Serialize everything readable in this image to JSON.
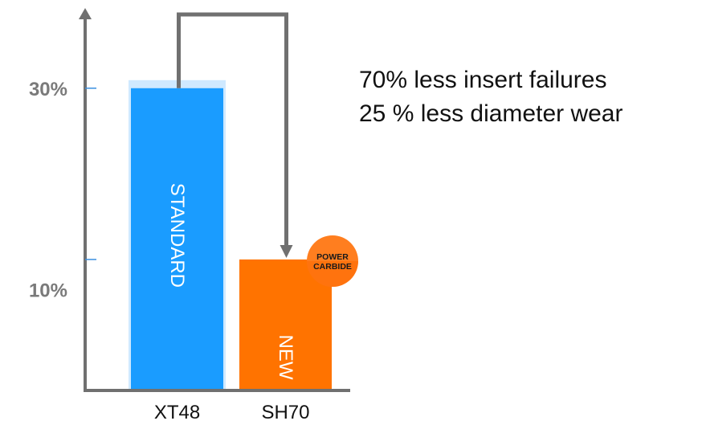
{
  "chart_data": {
    "type": "bar",
    "categories": [
      "XT48",
      "SH70"
    ],
    "values": [
      30,
      13
    ],
    "bar_labels": [
      "STANDARD",
      "NEW"
    ],
    "ylim": [
      0,
      37
    ],
    "yticks": [
      {
        "value": 30,
        "label": "30%",
        "marked": true
      },
      {
        "value": 13,
        "label": "",
        "marked": true
      },
      {
        "value": 10,
        "label": "10%",
        "marked": false
      }
    ],
    "annotations": [
      "70% less insert failures",
      "25 % less diameter wear"
    ],
    "badge": {
      "line1": "POWER",
      "line2": "CARBIDE"
    },
    "colors": {
      "standard": "#1a9cff",
      "new": "#ff7300",
      "axis": "#707070",
      "arrow": "#707070",
      "badge": "#ff7e1f",
      "label": "#7a7a7a"
    }
  }
}
